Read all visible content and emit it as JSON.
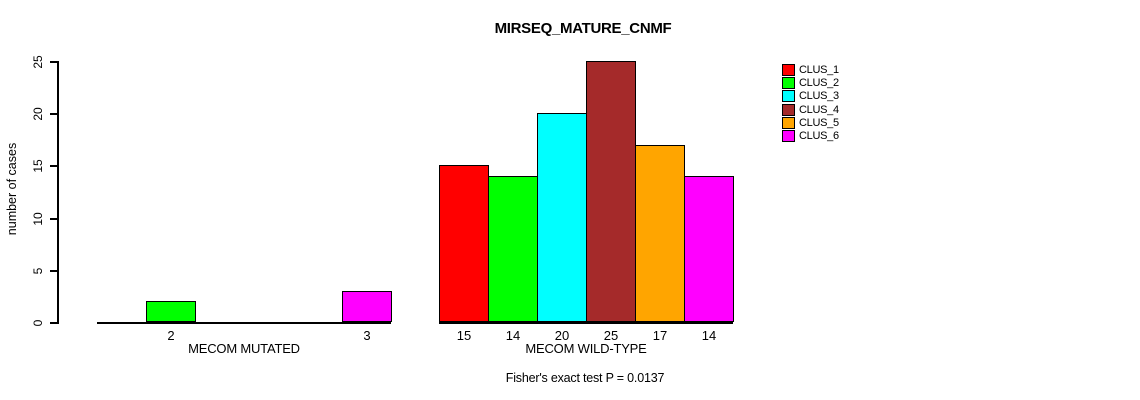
{
  "chart_data": {
    "type": "bar",
    "title": "MIRSEQ_MATURE_CNMF",
    "ylabel": "number of cases",
    "xlabel": "",
    "ylim": [
      0,
      25
    ],
    "yticks": [
      0,
      5,
      10,
      15,
      20,
      25
    ],
    "grid": false,
    "legend_position": "right",
    "legend": [
      {
        "label": "CLUS_1",
        "color": "#FF0000"
      },
      {
        "label": "CLUS_2",
        "color": "#00FF00"
      },
      {
        "label": "CLUS_3",
        "color": "#00FFFF"
      },
      {
        "label": "CLUS_4",
        "color": "#A52A2A"
      },
      {
        "label": "CLUS_5",
        "color": "#FFA500"
      },
      {
        "label": "CLUS_6",
        "color": "#FF00FF"
      }
    ],
    "groups": [
      {
        "label": "MECOM MUTATED",
        "values": [
          0,
          2,
          0,
          0,
          0,
          3
        ],
        "bar_labels": [
          "",
          "2",
          "",
          "",
          "",
          "3"
        ]
      },
      {
        "label": "MECOM WILD-TYPE",
        "values": [
          15,
          14,
          20,
          25,
          17,
          14
        ],
        "bar_labels": [
          "15",
          "14",
          "20",
          "25",
          "17",
          "14"
        ]
      }
    ],
    "annotation": "Fisher's exact test P = 0.0137"
  }
}
